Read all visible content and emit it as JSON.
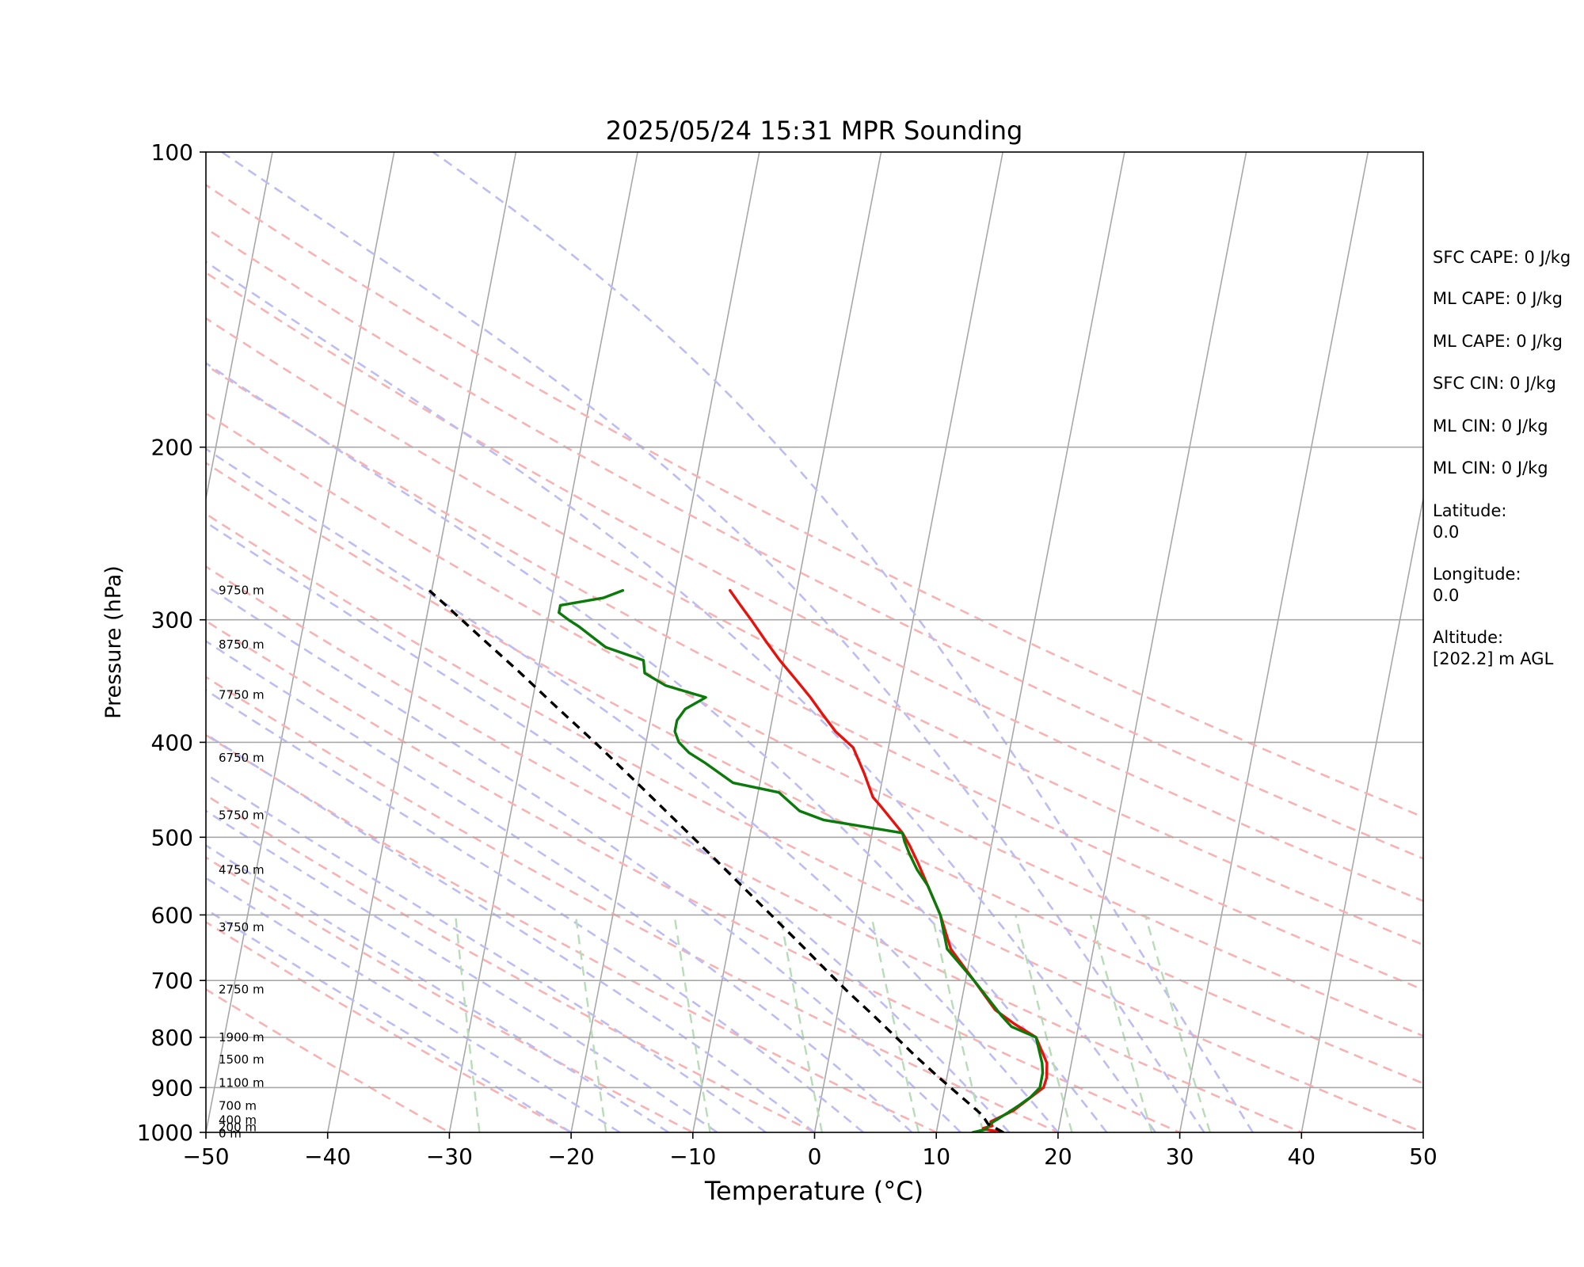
{
  "chart_data": {
    "type": "line",
    "title": "2025/05/24 15:31 MPR Sounding",
    "xlabel": "Temperature (°C)",
    "ylabel": "Pressure (hPa)",
    "xlim": [
      -50,
      50
    ],
    "ylim": [
      1000,
      100
    ],
    "y_scale": "log",
    "skew": true,
    "grid": true,
    "xticks": [
      "−50",
      "−40",
      "−30",
      "−20",
      "−10",
      "0",
      "10",
      "20",
      "30",
      "40",
      "50"
    ],
    "yticks": [
      "100",
      "200",
      "300",
      "400",
      "500",
      "600",
      "700",
      "800",
      "900",
      "1000"
    ],
    "height_labels": [
      {
        "p": 280,
        "label": "9750 m"
      },
      {
        "p": 318,
        "label": "8750 m"
      },
      {
        "p": 358,
        "label": "7750 m"
      },
      {
        "p": 415,
        "label": "6750 m"
      },
      {
        "p": 475,
        "label": "5750 m"
      },
      {
        "p": 540,
        "label": "4750 m"
      },
      {
        "p": 618,
        "label": "3750 m"
      },
      {
        "p": 715,
        "label": "2750 m"
      },
      {
        "p": 800,
        "label": "1900 m"
      },
      {
        "p": 843,
        "label": "1500 m"
      },
      {
        "p": 890,
        "label": "1100 m"
      },
      {
        "p": 940,
        "label": "700 m"
      },
      {
        "p": 972,
        "label": "400 m"
      },
      {
        "p": 988,
        "label": "200 m"
      },
      {
        "p": 1003,
        "label": "0 m"
      }
    ],
    "series": [
      {
        "role": "temperature",
        "color": "#e8120c",
        "style": "solid",
        "points": [
          [
            1000,
            15.5
          ],
          [
            993,
            14.0
          ],
          [
            990,
            13.8
          ],
          [
            985,
            14.5
          ],
          [
            975,
            14.3
          ],
          [
            950,
            16.0
          ],
          [
            900,
            18.1
          ],
          [
            880,
            18.2
          ],
          [
            850,
            18.0
          ],
          [
            800,
            16.7
          ],
          [
            775,
            14.7
          ],
          [
            750,
            12.9
          ],
          [
            700,
            10.7
          ],
          [
            650,
            8.3
          ],
          [
            600,
            6.9
          ],
          [
            560,
            5.4
          ],
          [
            530,
            4.2
          ],
          [
            510,
            3.3
          ],
          [
            495,
            2.5
          ],
          [
            465,
            0.3
          ],
          [
            455,
            -0.5
          ],
          [
            430,
            -1.6
          ],
          [
            405,
            -2.9
          ],
          [
            390,
            -4.6
          ],
          [
            375,
            -5.9
          ],
          [
            360,
            -7.2
          ],
          [
            345,
            -8.7
          ],
          [
            330,
            -10.3
          ],
          [
            315,
            -11.8
          ],
          [
            300,
            -13.3
          ],
          [
            290,
            -14.4
          ],
          [
            280,
            -15.5
          ]
        ]
      },
      {
        "role": "dewpoint",
        "color": "#0a7a0a",
        "style": "solid",
        "points": [
          [
            1000,
            13.0
          ],
          [
            993,
            14.0
          ],
          [
            980,
            14.3
          ],
          [
            960,
            15.3
          ],
          [
            940,
            16.3
          ],
          [
            920,
            17.2
          ],
          [
            900,
            17.8
          ],
          [
            870,
            17.8
          ],
          [
            850,
            17.6
          ],
          [
            800,
            16.7
          ],
          [
            780,
            14.5
          ],
          [
            760,
            13.5
          ],
          [
            700,
            10.7
          ],
          [
            650,
            8.0
          ],
          [
            600,
            6.9
          ],
          [
            560,
            5.4
          ],
          [
            540,
            4.3
          ],
          [
            520,
            3.4
          ],
          [
            505,
            2.8
          ],
          [
            495,
            2.5
          ],
          [
            480,
            -4.2
          ],
          [
            470,
            -6.3
          ],
          [
            450,
            -8.3
          ],
          [
            440,
            -12.2
          ],
          [
            420,
            -14.8
          ],
          [
            410,
            -16.3
          ],
          [
            400,
            -17.3
          ],
          [
            390,
            -17.8
          ],
          [
            380,
            -17.8
          ],
          [
            370,
            -17.3
          ],
          [
            360,
            -15.8
          ],
          [
            350,
            -19.3
          ],
          [
            340,
            -21.2
          ],
          [
            330,
            -21.5
          ],
          [
            320,
            -24.8
          ],
          [
            305,
            -27.3
          ],
          [
            300,
            -28.3
          ],
          [
            295,
            -29.2
          ],
          [
            290,
            -29.2
          ],
          [
            285,
            -25.8
          ],
          [
            280,
            -24.3
          ]
        ]
      },
      {
        "role": "parcel",
        "color": "#000000",
        "style": "dashed",
        "points": [
          [
            1000,
            15.5
          ],
          [
            980,
            14.1
          ],
          [
            960,
            13.5
          ],
          [
            920,
            11.5
          ],
          [
            880,
            9.4
          ],
          [
            840,
            7.3
          ],
          [
            800,
            5.2
          ],
          [
            760,
            3.0
          ],
          [
            720,
            0.6
          ],
          [
            680,
            -1.8
          ],
          [
            640,
            -4.3
          ],
          [
            600,
            -7.0
          ],
          [
            560,
            -9.9
          ],
          [
            520,
            -13.0
          ],
          [
            480,
            -16.4
          ],
          [
            440,
            -20.1
          ],
          [
            400,
            -24.2
          ],
          [
            370,
            -27.7
          ],
          [
            340,
            -31.4
          ],
          [
            310,
            -35.6
          ],
          [
            290,
            -38.6
          ],
          [
            280,
            -40.2
          ]
        ]
      }
    ],
    "stats": [
      {
        "label": "SFC CAPE: 0 J/kg"
      },
      {
        "label": "ML CAPE: 0 J/kg"
      },
      {
        "label": "ML CAPE: 0 J/kg"
      },
      {
        "label": "SFC CIN: 0 J/kg"
      },
      {
        "label": "ML CIN: 0 J/kg"
      },
      {
        "label": "ML CIN: 0 J/kg"
      },
      {
        "label": "Latitude:",
        "value": "0.0"
      },
      {
        "label": "Longitude:",
        "value": "0.0"
      },
      {
        "label": "Altitude:",
        "value": "[202.2] m AGL"
      }
    ]
  }
}
